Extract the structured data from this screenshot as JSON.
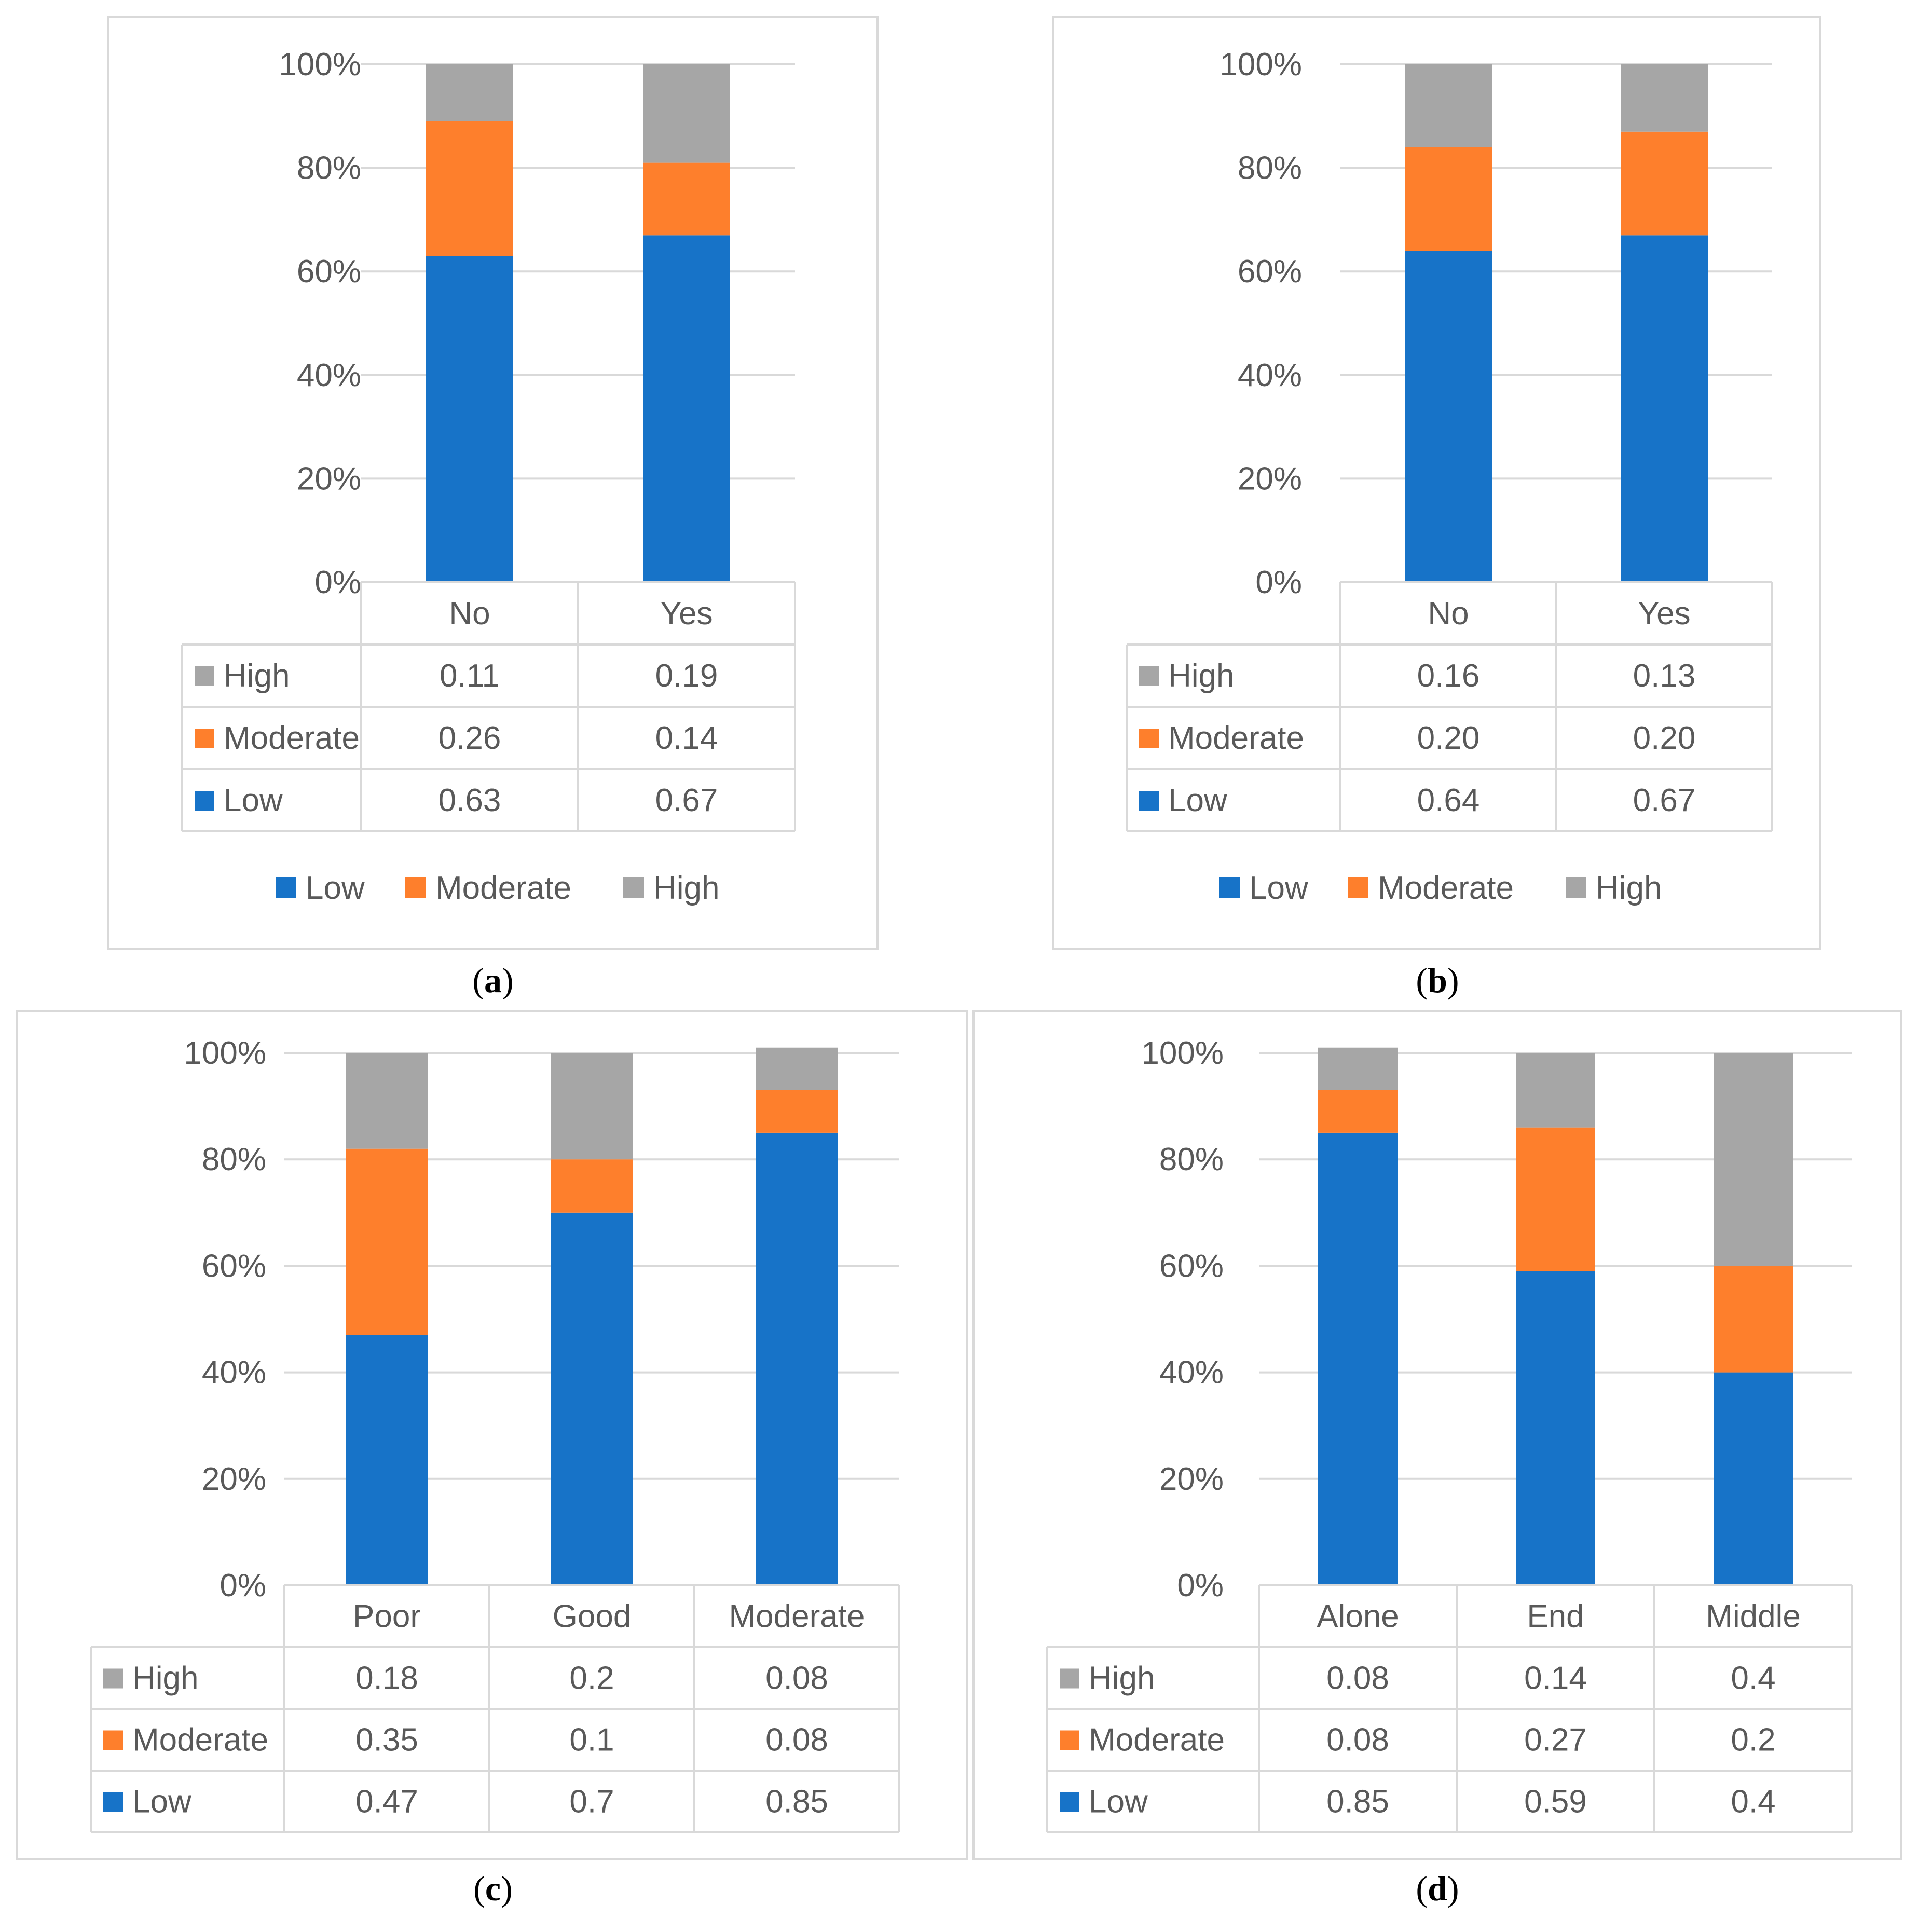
{
  "colors": {
    "low": "#1773C8",
    "moderate": "#FE7F2C",
    "high": "#A6A6A6",
    "grid": "#d9d9d9",
    "text": "#595959"
  },
  "chart_data": [
    {
      "id": "a",
      "type": "bar",
      "stacked": true,
      "caption": "a",
      "categories": [
        "No",
        "Yes"
      ],
      "series": [
        {
          "name": "High",
          "values": [
            0.11,
            0.19
          ],
          "labels": [
            "0.11",
            "0.19"
          ]
        },
        {
          "name": "Moderate",
          "values": [
            0.26,
            0.14
          ],
          "labels": [
            "0.26",
            "0.14"
          ]
        },
        {
          "name": "Low",
          "values": [
            0.63,
            0.67
          ],
          "labels": [
            "0.63",
            "0.67"
          ]
        }
      ],
      "yticks": [
        "0%",
        "20%",
        "40%",
        "60%",
        "80%",
        "100%"
      ],
      "ylim": [
        0,
        1
      ],
      "legend": [
        "Low",
        "Moderate",
        "High"
      ],
      "legend_position": "bottom",
      "data_table": true
    },
    {
      "id": "b",
      "type": "bar",
      "stacked": true,
      "caption": "b",
      "categories": [
        "No",
        "Yes"
      ],
      "series": [
        {
          "name": "High",
          "values": [
            0.16,
            0.13
          ],
          "labels": [
            "0.16",
            "0.13"
          ]
        },
        {
          "name": "Moderate",
          "values": [
            0.2,
            0.2
          ],
          "labels": [
            "0.20",
            "0.20"
          ]
        },
        {
          "name": "Low",
          "values": [
            0.64,
            0.67
          ],
          "labels": [
            "0.64",
            "0.67"
          ]
        }
      ],
      "yticks": [
        "0%",
        "20%",
        "40%",
        "60%",
        "80%",
        "100%"
      ],
      "ylim": [
        0,
        1
      ],
      "legend": [
        "Low",
        "Moderate",
        "High"
      ],
      "legend_position": "bottom",
      "data_table": true
    },
    {
      "id": "c",
      "type": "bar",
      "stacked": true,
      "caption": "c",
      "categories": [
        "Poor",
        "Good",
        "Moderate"
      ],
      "series": [
        {
          "name": "High",
          "values": [
            0.18,
            0.2,
            0.08
          ],
          "labels": [
            "0.18",
            "0.2",
            "0.08"
          ]
        },
        {
          "name": "Moderate",
          "values": [
            0.35,
            0.1,
            0.08
          ],
          "labels": [
            "0.35",
            "0.1",
            "0.08"
          ]
        },
        {
          "name": "Low",
          "values": [
            0.47,
            0.7,
            0.85
          ],
          "labels": [
            "0.47",
            "0.7",
            "0.85"
          ]
        }
      ],
      "yticks": [
        "0%",
        "20%",
        "40%",
        "60%",
        "80%",
        "100%"
      ],
      "ylim": [
        0,
        1
      ],
      "legend": [],
      "data_table": true
    },
    {
      "id": "d",
      "type": "bar",
      "stacked": true,
      "caption": "d",
      "categories": [
        "Alone",
        "End",
        "Middle"
      ],
      "series": [
        {
          "name": "High",
          "values": [
            0.08,
            0.14,
            0.4
          ],
          "labels": [
            "0.08",
            "0.14",
            "0.4"
          ]
        },
        {
          "name": "Moderate",
          "values": [
            0.08,
            0.27,
            0.2
          ],
          "labels": [
            "0.08",
            "0.27",
            "0.2"
          ]
        },
        {
          "name": "Low",
          "values": [
            0.85,
            0.59,
            0.4
          ],
          "labels": [
            "0.85",
            "0.59",
            "0.4"
          ]
        }
      ],
      "yticks": [
        "0%",
        "20%",
        "40%",
        "60%",
        "80%",
        "100%"
      ],
      "ylim": [
        0,
        1
      ],
      "legend": [],
      "data_table": true
    }
  ]
}
